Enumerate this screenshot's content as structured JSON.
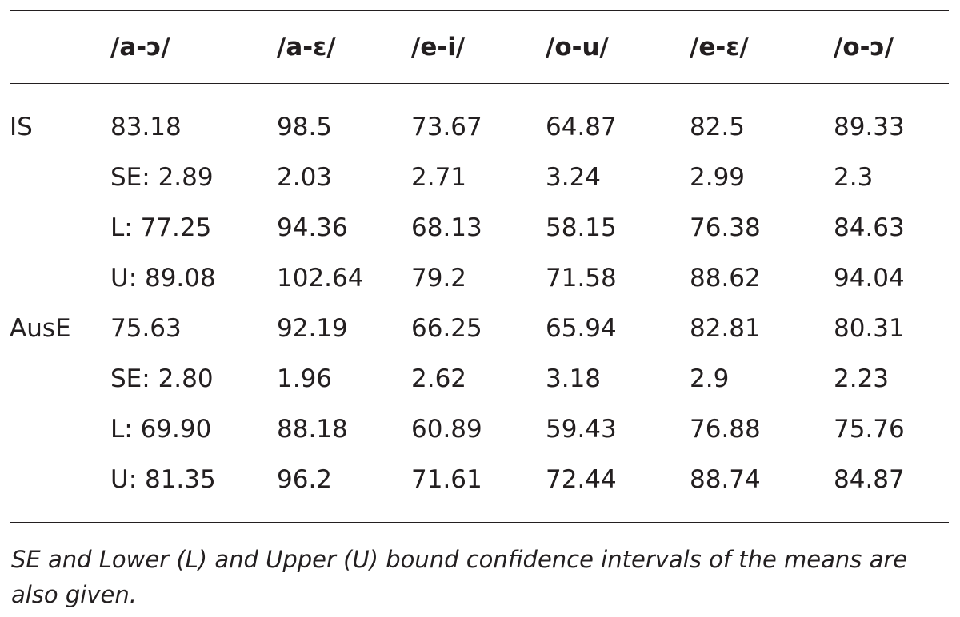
{
  "table": {
    "headers": [
      "",
      "/a-ɔ/",
      "/a-ε/",
      "/e-i/",
      "/o-u/",
      "/e-ε/",
      "/o-ɔ/"
    ],
    "rows": [
      [
        "IS",
        "83.18",
        "98.5",
        "73.67",
        "64.87",
        "82.5",
        "89.33"
      ],
      [
        "",
        "SE: 2.89",
        "2.03",
        "2.71",
        "3.24",
        "2.99",
        "2.3"
      ],
      [
        "",
        "L: 77.25",
        "94.36",
        "68.13",
        "58.15",
        "76.38",
        "84.63"
      ],
      [
        "",
        "U: 89.08",
        "102.64",
        "79.2",
        "71.58",
        "88.62",
        "94.04"
      ],
      [
        "AusE",
        "75.63",
        "92.19",
        "66.25",
        "65.94",
        "82.81",
        "80.31"
      ],
      [
        "",
        "SE: 2.80",
        "1.96",
        "2.62",
        "3.18",
        "2.9",
        "2.23"
      ],
      [
        "",
        "L: 69.90",
        "88.18",
        "60.89",
        "59.43",
        "76.88",
        "75.76"
      ],
      [
        "",
        "U: 81.35",
        "96.2",
        "71.61",
        "72.44",
        "88.74",
        "84.87"
      ]
    ]
  },
  "footnote": "SE and Lower (L) and Upper (U) bound confidence intervals of the means are also given."
}
